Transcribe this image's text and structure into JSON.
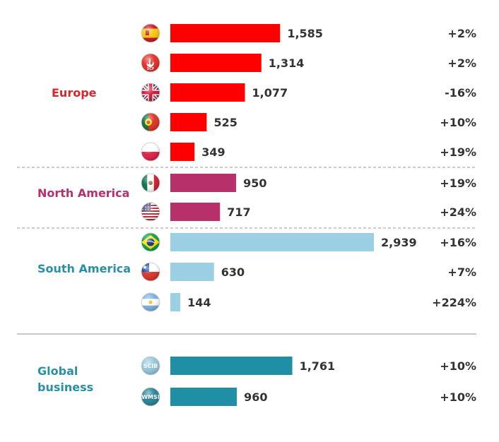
{
  "chart_data": {
    "type": "bar",
    "orientation": "horizontal",
    "xlim": [
      0,
      2939
    ],
    "grid": false,
    "legend": "none",
    "groups": [
      {
        "label": "Europe",
        "color": "#d7262c",
        "bar_color": "#ff0000",
        "rows": [
          {
            "icon": "spain-flag-icon",
            "value": 1585,
            "value_label": "1,585",
            "change": "+2%"
          },
          {
            "icon": "santander-consumer-finance-icon",
            "badge": "SCF",
            "value": 1314,
            "value_label": "1,314",
            "change": "+2%"
          },
          {
            "icon": "uk-flag-icon",
            "value": 1077,
            "value_label": "1,077",
            "change": "-16%"
          },
          {
            "icon": "portugal-flag-icon",
            "value": 525,
            "value_label": "525",
            "change": "+10%"
          },
          {
            "icon": "poland-flag-icon",
            "value": 349,
            "value_label": "349",
            "change": "+19%"
          }
        ]
      },
      {
        "label": "North America",
        "color": "#b8306a",
        "bar_color": "#b8306a",
        "rows": [
          {
            "icon": "mexico-flag-icon",
            "value": 950,
            "value_label": "950",
            "change": "+19%"
          },
          {
            "icon": "usa-flag-icon",
            "value": 717,
            "value_label": "717",
            "change": "+24%"
          }
        ]
      },
      {
        "label": "South America",
        "color": "#2a8fa5",
        "bar_color": "#9bcfe3",
        "rows": [
          {
            "icon": "brazil-flag-icon",
            "value": 2939,
            "value_label": "2,939",
            "change": "+16%"
          },
          {
            "icon": "chile-flag-icon",
            "value": 630,
            "value_label": "630",
            "change": "+7%"
          },
          {
            "icon": "argentina-flag-icon",
            "value": 144,
            "value_label": "144",
            "change": "+224%"
          }
        ]
      },
      {
        "label": "Global business",
        "label_lines": [
          "Global",
          "business"
        ],
        "color": "#2a8fa5",
        "bar_color": "#1f8fa6",
        "rows": [
          {
            "icon": "scib-badge-icon",
            "badge": "SCIB",
            "value": 1761,
            "value_label": "1,761",
            "change": "+10%"
          },
          {
            "icon": "wmsi-badge-icon",
            "badge": "WMSI",
            "value": 960,
            "value_label": "960",
            "change": "+10%"
          }
        ]
      }
    ]
  }
}
